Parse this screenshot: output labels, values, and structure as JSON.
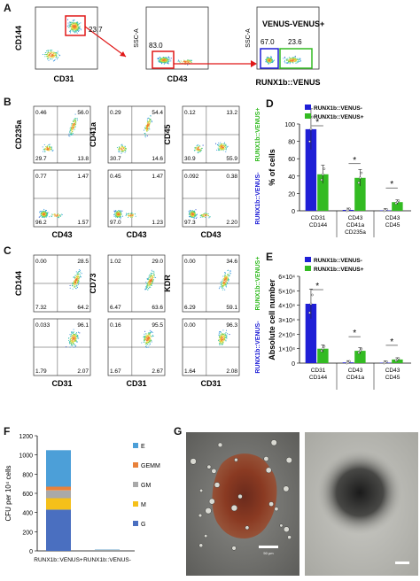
{
  "panels": {
    "A": {
      "letter": "A",
      "x1": "CD31",
      "y1": "CD144",
      "gate1": "23.7",
      "x2": "CD43",
      "y2": "SSC-A",
      "gate2": "83.0",
      "x3": "RUNX1b::VENUS",
      "y3": "SSC-A",
      "venus_neg_label": "VENUS-",
      "venus_pos_label": "VENUS+",
      "pct_neg": "67.0",
      "pct_pos": "23.6"
    },
    "B": {
      "letter": "B",
      "pos_row": [
        {
          "y": "CD235a",
          "q": [
            "0.46",
            "56.0",
            "29.7",
            "13.8"
          ]
        },
        {
          "y": "CD41a",
          "q": [
            "0.29",
            "54.4",
            "30.7",
            "14.6"
          ]
        },
        {
          "y": "CD45",
          "q": [
            "0.12",
            "13.2",
            "30.9",
            "55.9"
          ]
        }
      ],
      "neg_row": [
        {
          "q": [
            "0.77",
            "1.47",
            "96.2",
            "1.57"
          ]
        },
        {
          "q": [
            "0.45",
            "1.47",
            "97.0",
            "1.23"
          ]
        },
        {
          "q": [
            "0.092",
            "0.38",
            "97.3",
            "2.20"
          ]
        }
      ],
      "x": "CD43",
      "side_pos": "RUNX1b::VENUS+",
      "side_neg": "RUNX1b::VENUS-"
    },
    "C": {
      "letter": "C",
      "pos_row": [
        {
          "y": "CD144",
          "q": [
            "0.00",
            "28.5",
            "7.32",
            "64.2"
          ]
        },
        {
          "y": "CD73",
          "q": [
            "1.02",
            "29.0",
            "6.47",
            "63.6"
          ]
        },
        {
          "y": "KDR",
          "q": [
            "0.00",
            "34.6",
            "6.29",
            "59.1"
          ]
        }
      ],
      "neg_row": [
        {
          "q": [
            "0.033",
            "96.1",
            "1.79",
            "2.07"
          ]
        },
        {
          "q": [
            "0.16",
            "95.5",
            "1.67",
            "2.67"
          ]
        },
        {
          "q": [
            "0.00",
            "96.3",
            "1.64",
            "2.08"
          ]
        }
      ],
      "x": "CD31",
      "side_pos": "RUNX1b::VENUS+",
      "side_neg": "RUNX1b::VENUS-"
    },
    "D": {
      "letter": "D"
    },
    "E": {
      "letter": "E"
    },
    "F": {
      "letter": "F"
    },
    "G": {
      "letter": "G",
      "scale1": "50 µm"
    }
  },
  "colors": {
    "venus_neg": "#1f1fd6",
    "venus_pos": "#33bb22",
    "gate_red": "#e01818",
    "stack_E": "#4c9fd8",
    "stack_GEMM": "#e8813a",
    "stack_GM": "#a9a9a9",
    "stack_M": "#f5c01a",
    "stack_G": "#4a6fc0"
  },
  "chart_data": [
    {
      "type": "bar",
      "panel": "D",
      "ylabel": "% of cells",
      "ylim": [
        0,
        100
      ],
      "yticks": [
        "0",
        "20",
        "40",
        "60",
        "80",
        "100"
      ],
      "categories": [
        "CD31\nCD144",
        "CD43\nCD41a\nCD235a",
        "CD43\nCD45"
      ],
      "series": [
        {
          "name": "RUNX1b::VENUS-",
          "values": [
            94,
            1,
            0.5
          ]
        },
        {
          "name": "RUNX1b::VENUS+",
          "values": [
            42,
            38,
            10
          ]
        }
      ],
      "significance": [
        "*",
        "*",
        "*"
      ]
    },
    {
      "type": "bar",
      "panel": "E",
      "ylabel": "Absolute cell number",
      "ylim": [
        0,
        60000
      ],
      "yticks": [
        "0",
        "1×10⁴",
        "2×10⁴",
        "3×10⁴",
        "4×10⁴",
        "5×10⁴",
        "6×10⁴"
      ],
      "categories": [
        "CD31\nCD144",
        "CD43\nCD41a",
        "CD43\nCD45"
      ],
      "series": [
        {
          "name": "RUNX1b::VENUS-",
          "values": [
            41000,
            500,
            300
          ]
        },
        {
          "name": "RUNX1b::VENUS+",
          "values": [
            10000,
            8500,
            2500
          ]
        }
      ],
      "significance": [
        "*",
        "*",
        "*"
      ]
    },
    {
      "type": "bar",
      "panel": "F",
      "ylabel": "CFU per 10⁴ cells",
      "ylim": [
        0,
        1200
      ],
      "yticks": [
        "0",
        "200",
        "400",
        "600",
        "800",
        "1000",
        "1200"
      ],
      "categories": [
        "RUNX1b::VENUS+",
        "RUNX1b::VENUS-"
      ],
      "series": [
        {
          "name": "G",
          "values": [
            430,
            5
          ]
        },
        {
          "name": "M",
          "values": [
            120,
            3
          ]
        },
        {
          "name": "GM",
          "values": [
            80,
            2
          ]
        },
        {
          "name": "GEMM",
          "values": [
            40,
            1
          ]
        },
        {
          "name": "E",
          "values": [
            380,
            4
          ]
        }
      ],
      "legend": [
        "E",
        "GEMM",
        "GM",
        "M",
        "G"
      ]
    }
  ]
}
